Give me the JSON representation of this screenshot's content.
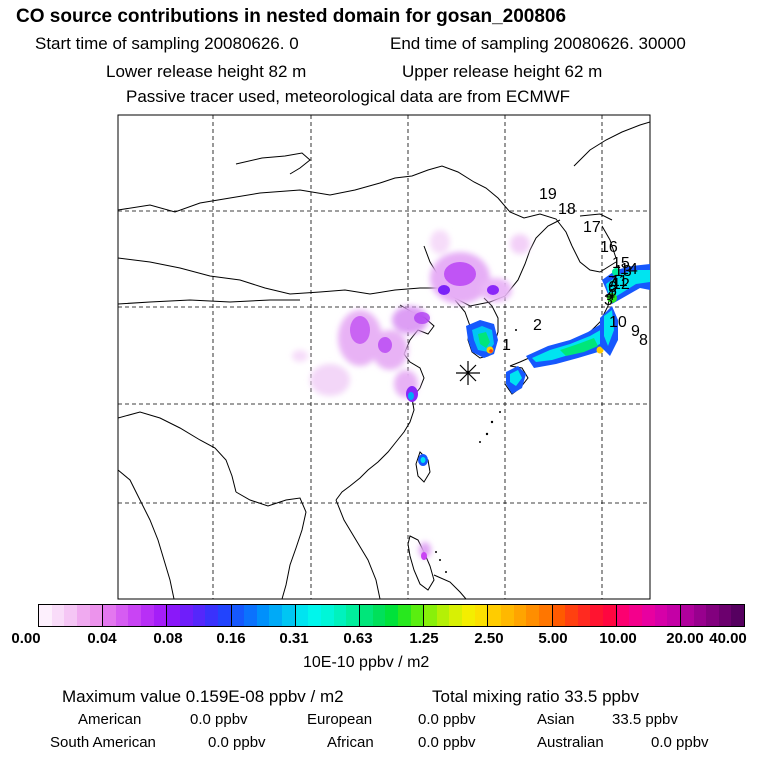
{
  "header": {
    "title": "CO  source contributions in nested domain for gosan_200806",
    "start_time": "Start time of sampling 20080626.     0",
    "end_time": "End time of sampling 20080626. 30000",
    "lower_release": "Lower release height   82 m",
    "upper_release": "Upper release height   62 m",
    "tracer_note": "Passive tracer used, meteorological data are from ECMWF"
  },
  "map": {
    "station_marker": "gosan-asterisk",
    "trajectory_labels": [
      "1",
      "2",
      "3",
      "4",
      "5",
      "6",
      "7",
      "8",
      "9",
      "10",
      "11",
      "12",
      "13",
      "14",
      "15",
      "16",
      "17",
      "18",
      "19"
    ]
  },
  "colorbar": {
    "ticks": [
      "0.00",
      "0.04",
      "0.08",
      "0.16",
      "0.31",
      "0.63",
      "1.25",
      "2.50",
      "5.00",
      "10.00",
      "20.00",
      "40.00"
    ],
    "unit": "10E-10 ppbv / m2",
    "colors": [
      [
        "#fdf0fd",
        "#f9dcf9",
        "#f5c6f5",
        "#f0aaf0",
        "#ec93ec"
      ],
      [
        "#e377ef",
        "#d65cf2",
        "#c944f4",
        "#b82ff6",
        "#a51ef8"
      ],
      [
        "#8a18f9",
        "#6f1efa",
        "#5527fb",
        "#3a32fc",
        "#2244fd"
      ],
      [
        "#1658fd",
        "#0b72fd",
        "#0090fb",
        "#00aaf7",
        "#00c6f3"
      ],
      [
        "#00e4f0",
        "#00f6ec",
        "#00f6d8",
        "#00f2bd",
        "#00ee9c"
      ],
      [
        "#00e67a",
        "#00e05a",
        "#00e23a",
        "#28e81e",
        "#5aee10"
      ],
      [
        "#88f00a",
        "#b4f006",
        "#d8f004",
        "#f4ee00",
        "#fce000"
      ],
      [
        "#ffcc00",
        "#ffb800",
        "#ffa400",
        "#ff8e00",
        "#ff7600"
      ],
      [
        "#ff5a00",
        "#ff4010",
        "#ff2a20",
        "#ff1430",
        "#ff0640"
      ],
      [
        "#fc0070",
        "#f4008c",
        "#e800a0",
        "#d600a8",
        "#c400a6"
      ],
      [
        "#b0009c",
        "#98008e",
        "#82007e",
        "#6c006e",
        "#560060"
      ]
    ]
  },
  "stats": {
    "maximum": "Maximum value  0.159E-08 ppbv / m2",
    "total": "Total mixing ratio       33.5 ppbv",
    "american": "American",
    "american_val": "0.0 ppbv",
    "european": "European",
    "european_val": "0.0 ppbv",
    "asian": "Asian",
    "asian_val": "33.5 ppbv",
    "south_american": "South American",
    "south_american_val": "0.0 ppbv",
    "african": "African",
    "african_val": "0.0 ppbv",
    "australian": "Australian",
    "australian_val": "0.0 ppbv"
  }
}
